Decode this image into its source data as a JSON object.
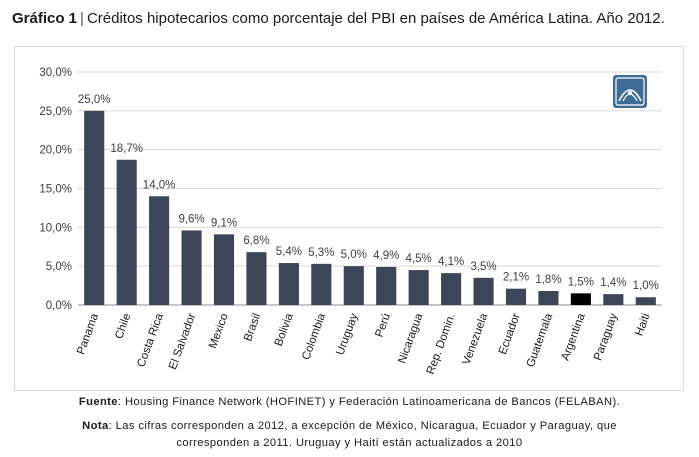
{
  "title": {
    "label": "Gráfico 1",
    "separator": "|",
    "text": "Créditos hipotecarios como porcentaje del PBI en países de América Latina. Año 2012."
  },
  "logo": {
    "icon": "organization-logo-icon",
    "color": "#3f6c96"
  },
  "chart_data": {
    "type": "bar",
    "categories": [
      "Panama",
      "Chile",
      "Costa Rica",
      "El Salvador",
      "Mexico",
      "Brasil",
      "Bolivia",
      "Colombia",
      "Uruguay",
      "Perú",
      "Nicaragua",
      "Rep. Domin.",
      "Venezuela",
      "Ecuador",
      "Guatemala",
      "Argentina",
      "Paraguay",
      "Haiti"
    ],
    "values": [
      25.0,
      18.7,
      14.0,
      9.6,
      9.1,
      6.8,
      5.4,
      5.3,
      5.0,
      4.9,
      4.5,
      4.1,
      3.5,
      2.1,
      1.8,
      1.5,
      1.4,
      1.0
    ],
    "data_labels": [
      "25,0%",
      "18,7%",
      "14,0%",
      "9,6%",
      "9,1%",
      "6,8%",
      "5,4%",
      "5,3%",
      "5,0%",
      "4,9%",
      "4,5%",
      "4,1%",
      "3,5%",
      "2,1%",
      "1,8%",
      "1,5%",
      "1,4%",
      "1,0%"
    ],
    "y_ticks": [
      0,
      5,
      10,
      15,
      20,
      25,
      30
    ],
    "y_tick_labels": [
      "0,0%",
      "5,0%",
      "10,0%",
      "15,0%",
      "20,0%",
      "25,0%",
      "30,0%"
    ],
    "ylim": [
      0,
      30
    ],
    "grid": true,
    "bar_color": "#3c4658",
    "highlight_category": "Argentina",
    "highlight_color": "#000000"
  },
  "footer": {
    "source_label": "Fuente",
    "source_text": ": Housing Finance Network (HOFINET) y Federación Latinoamericana de Bancos (FELABAN).",
    "note_label": "Nota",
    "note_text_line1": ": Las cifras corresponden a 2012, a excepción de México, Nicaragua, Ecuador y Paraguay, que",
    "note_text_line2": "corresponden a 2011. Uruguay y Haití están actualizados a 2010"
  }
}
